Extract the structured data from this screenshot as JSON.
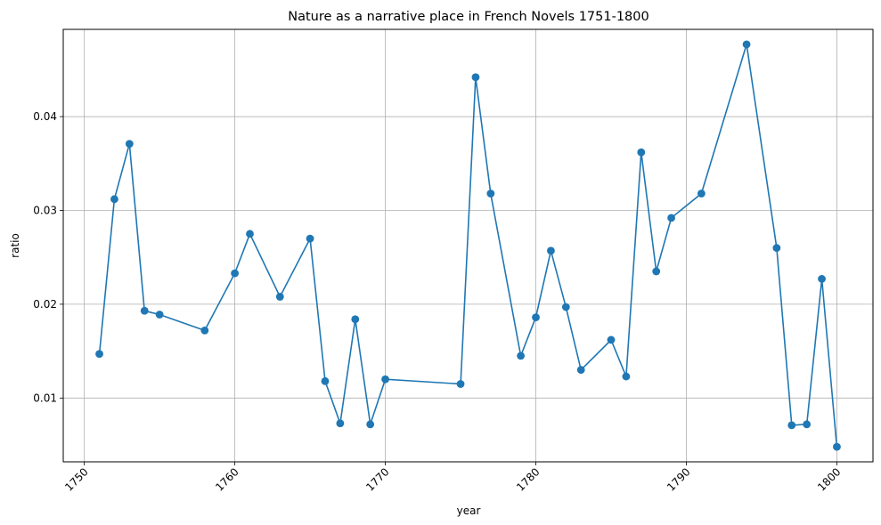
{
  "chart_data": {
    "type": "line",
    "title": "Nature as a narrative place in French Novels 1751-1800",
    "xlabel": "year",
    "ylabel": "ratio",
    "xlim": [
      1748.6,
      1802.4
    ],
    "ylim": [
      0.0032,
      0.0493
    ],
    "xticks": [
      1750,
      1760,
      1770,
      1780,
      1790,
      1800
    ],
    "yticks": [
      0.01,
      0.02,
      0.03,
      0.04
    ],
    "ytick_labels": [
      "0.01",
      "0.02",
      "0.03",
      "0.04"
    ],
    "grid": true,
    "marker": "circle",
    "color": "#1f77b4",
    "series": [
      {
        "x": [
          1751,
          1752,
          1753,
          1754,
          1755,
          1758,
          1760,
          1761,
          1763,
          1765,
          1766,
          1767,
          1768,
          1769,
          1770,
          1775,
          1776,
          1777,
          1779,
          1780,
          1781,
          1782,
          1783,
          1785,
          1786,
          1787,
          1788,
          1789,
          1791,
          1794,
          1796,
          1797,
          1798,
          1799,
          1800
        ],
        "y": [
          0.0147,
          0.0312,
          0.0371,
          0.0193,
          0.0189,
          0.0172,
          0.0233,
          0.0275,
          0.0208,
          0.027,
          0.0118,
          0.0073,
          0.0184,
          0.0072,
          0.012,
          0.0115,
          0.0442,
          0.0318,
          0.0145,
          0.0186,
          0.0257,
          0.0197,
          0.013,
          0.0162,
          0.0123,
          0.0362,
          0.0235,
          0.0292,
          0.0318,
          0.0477,
          0.026,
          0.0071,
          0.0072,
          0.0227,
          0.0048
        ]
      }
    ]
  }
}
